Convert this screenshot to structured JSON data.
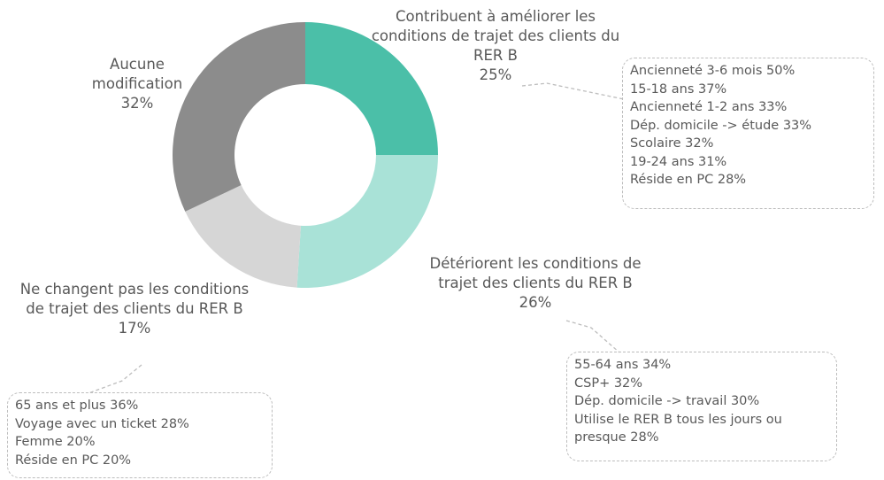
{
  "chart_data": {
    "type": "pie",
    "donut": true,
    "categories": [
      "Contribuent à améliorer les conditions de trajet des clients du RER B",
      "Détériorent les conditions de trajet des clients du RER B",
      "Ne changent pas les conditions de trajet des clients du RER B",
      "Aucune modification"
    ],
    "values": [
      25,
      26,
      17,
      32
    ],
    "value_labels": [
      "25%",
      "26%",
      "17%",
      "32%"
    ],
    "colors": [
      "#4bbfa8",
      "#a9e2d7",
      "#d6d6d6",
      "#8c8c8c"
    ],
    "annotations": [
      [
        "Ancienneté 3-6 mois 50%",
        "15-18 ans 37%",
        "Ancienneté 1-2 ans 33%",
        "Dép. domicile -> étude 33%",
        "Scolaire 32%",
        "19-24 ans 31%",
        "Réside en PC 28%"
      ],
      [
        "55-64 ans 34%",
        "CSP+ 32%",
        "Dép. domicile -> travail 30%",
        "Utilise le RER B tous les jours ou presque 28%"
      ],
      [
        "65 ans et plus 36%",
        "Voyage avec un ticket 28%",
        "Femme 20%",
        "Réside en PC 20%"
      ]
    ]
  }
}
